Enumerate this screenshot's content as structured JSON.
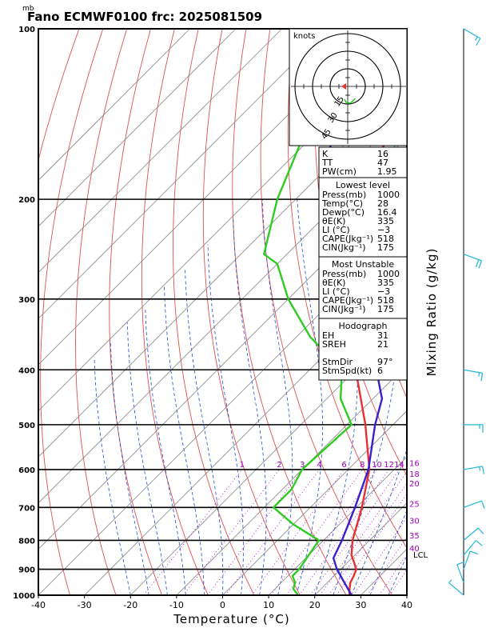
{
  "title": "Fano ECMWF0100  frc: 2025081509",
  "pressure_unit": "mb",
  "chart_data": {
    "type": "line",
    "subtype": "skew-t log-p",
    "xlabel": "Temperature (°C)",
    "ylabel": "Mixing Ratio (g/kg)",
    "xlim": [
      -40,
      40
    ],
    "ylim_mb": [
      1000,
      100
    ],
    "y_scale": "log",
    "x_ticks": [
      -40,
      -30,
      -20,
      -10,
      0,
      10,
      20,
      30,
      40
    ],
    "y_ticks": [
      100,
      200,
      300,
      400,
      500,
      600,
      700,
      800,
      900,
      1000
    ],
    "mixing_ratio_labels": [
      "1",
      "2",
      "3",
      "4",
      "6",
      "8",
      "10",
      "12",
      "14",
      "16",
      "18",
      "20",
      "25",
      "30",
      "35",
      "40"
    ],
    "lcl_label": "LCL",
    "lcl_pressure": 860,
    "series": [
      {
        "key": "temperature",
        "color": "#e8302e",
        "points": [
          [
            1000,
            27.5
          ],
          [
            975,
            26.2
          ],
          [
            950,
            25
          ],
          [
            925,
            24.3
          ],
          [
            900,
            23.4
          ],
          [
            875,
            21.4
          ],
          [
            850,
            19.3
          ],
          [
            800,
            16.3
          ],
          [
            700,
            11.2
          ],
          [
            600,
            4.6
          ],
          [
            500,
            -6
          ],
          [
            400,
            -20
          ],
          [
            350,
            -28.3
          ],
          [
            300,
            -38
          ],
          [
            270,
            -45
          ],
          [
            250,
            -48.5
          ],
          [
            200,
            -58
          ],
          [
            150,
            -64
          ],
          [
            100,
            -72
          ]
        ]
      },
      {
        "key": "dewpoint",
        "color": "#2ecc20",
        "points": [
          [
            1000,
            16.4
          ],
          [
            975,
            14
          ],
          [
            950,
            13
          ],
          [
            925,
            11
          ],
          [
            900,
            11
          ],
          [
            850,
            10
          ],
          [
            800,
            9
          ],
          [
            750,
            0
          ],
          [
            700,
            -8
          ],
          [
            650,
            -8
          ],
          [
            600,
            -10
          ],
          [
            500,
            -9
          ],
          [
            450,
            -17
          ],
          [
            400,
            -23
          ],
          [
            350,
            -37
          ],
          [
            300,
            -50
          ],
          [
            260,
            -60
          ],
          [
            250,
            -65
          ],
          [
            200,
            -74
          ],
          [
            150,
            -83
          ],
          [
            100,
            -95
          ]
        ]
      },
      {
        "key": "parcel",
        "color": "#3a1fd0",
        "points": [
          [
            1000,
            28
          ],
          [
            950,
            23.7
          ],
          [
            900,
            19.2
          ],
          [
            860,
            16
          ],
          [
            800,
            14
          ],
          [
            700,
            9.7
          ],
          [
            600,
            4.4
          ],
          [
            500,
            -3.9
          ],
          [
            450,
            -8
          ],
          [
            400,
            -15.5
          ],
          [
            350,
            -24
          ],
          [
            300,
            -35
          ],
          [
            250,
            -48
          ],
          [
            200,
            -62
          ],
          [
            150,
            -78
          ],
          [
            120,
            -88
          ]
        ]
      }
    ],
    "hodograph": {
      "units": "knots",
      "ring_labels": [
        "15",
        "30",
        "45"
      ]
    },
    "indices": {
      "K": "16",
      "TT": "47",
      "PW(cm)": "1.95"
    },
    "lowest_level": {
      "heading": "Lowest level",
      "rows": [
        [
          "Press(mb)",
          "1000"
        ],
        [
          "Temp(°C)",
          "28"
        ],
        [
          "Dewp(°C)",
          "16.4"
        ],
        [
          "θE(K)",
          "335"
        ],
        [
          "LI (°C)",
          "−3"
        ],
        [
          "CAPE(Jkg⁻¹)",
          "518"
        ],
        [
          "CIN(Jkg⁻¹)",
          "175"
        ]
      ]
    },
    "most_unstable": {
      "heading": "Most Unstable",
      "rows": [
        [
          "Press(mb)",
          "1000"
        ],
        [
          "θE(K)",
          "335"
        ],
        [
          "LI (°C)",
          "−3"
        ],
        [
          "CAPE(Jkg⁻¹)",
          "518"
        ],
        [
          "CIN(Jkg⁻¹)",
          "175"
        ]
      ]
    },
    "hodograph_params": {
      "heading": "Hodograph",
      "rows": [
        [
          "EH",
          "31"
        ],
        [
          "SREH",
          "21"
        ],
        [
          "",
          ""
        ],
        [
          "StmDir",
          "97°"
        ],
        [
          "StmSpd(kt)",
          "6"
        ]
      ]
    },
    "wind_barbs": [
      {
        "p": 100,
        "dir": 300,
        "spd": 15
      },
      {
        "p": 250,
        "dir": 290,
        "spd": 20
      },
      {
        "p": 400,
        "dir": 280,
        "spd": 15
      },
      {
        "p": 500,
        "dir": 270,
        "spd": 15
      },
      {
        "p": 600,
        "dir": 260,
        "spd": 15
      },
      {
        "p": 700,
        "dir": 250,
        "spd": 10
      },
      {
        "p": 800,
        "dir": 230,
        "spd": 10
      },
      {
        "p": 850,
        "dir": 220,
        "spd": 10
      },
      {
        "p": 900,
        "dir": 200,
        "spd": 10
      },
      {
        "p": 950,
        "dir": 160,
        "spd": 10
      },
      {
        "p": 1000,
        "dir": 130,
        "spd": 5
      }
    ]
  }
}
